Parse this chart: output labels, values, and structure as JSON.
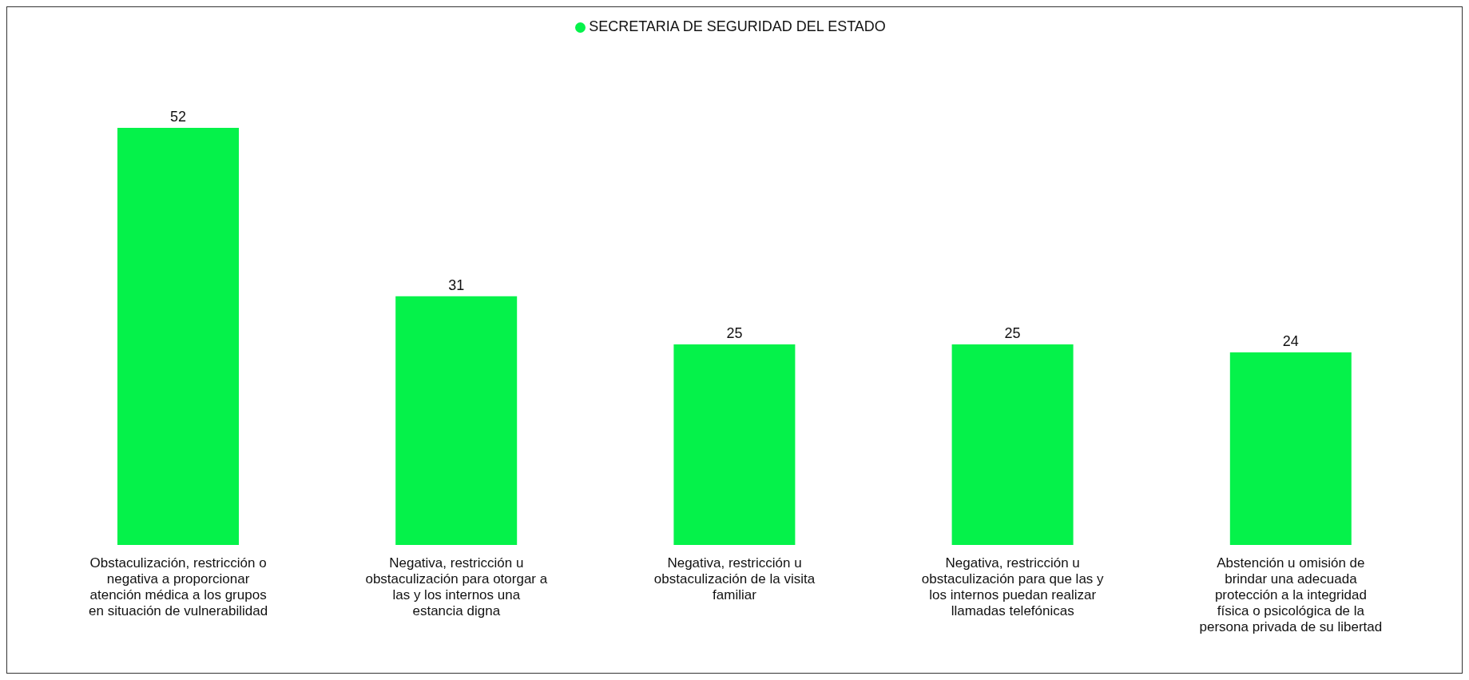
{
  "chart_data": {
    "type": "bar",
    "categories": [
      "Obstaculización, restricción o negativa a proporcionar atención médica a los grupos en situación de vulnerabilidad",
      "Negativa, restricción u obstaculización para otorgar a las y los internos una estancia digna",
      "Negativa, restricción u obstaculización de la visita familiar",
      "Negativa, restricción u obstaculización para que las y los internos puedan realizar llamadas telefónicas",
      "Abstención u omisión de brindar una adecuada protección a la integridad física o psicológica de la persona privada de su libertad"
    ],
    "series": [
      {
        "name": "SECRETARIA DE SEGURIDAD DEL ESTADO",
        "color": "#05f24a",
        "values": [
          52,
          31,
          25,
          25,
          24
        ]
      }
    ],
    "data_labels": true,
    "legend": "top",
    "grid": false
  }
}
